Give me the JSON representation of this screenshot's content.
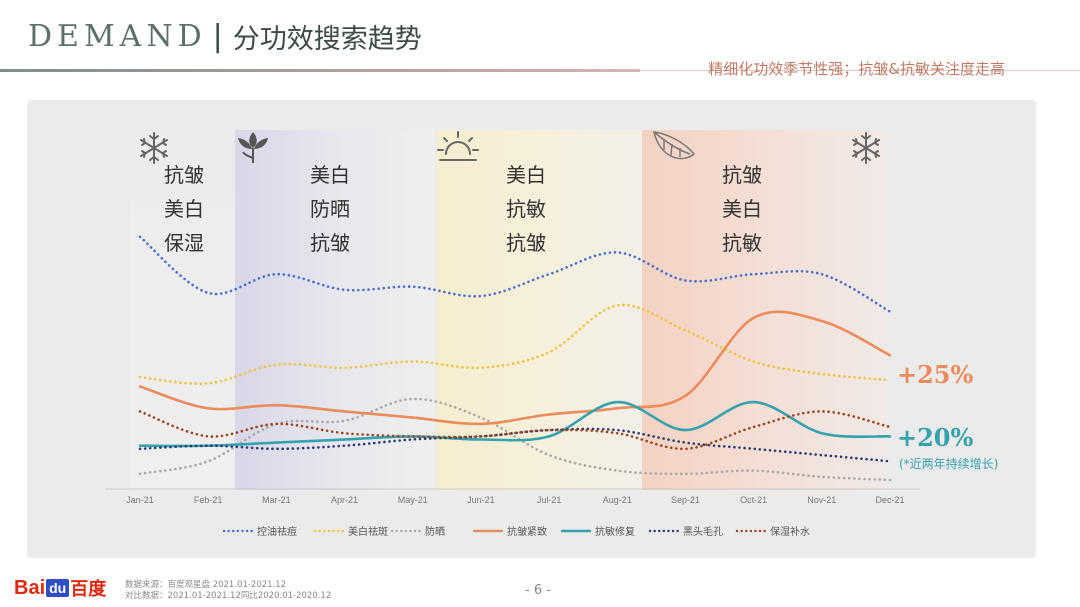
{
  "header": {
    "title_en": "DEMAND",
    "title_sep": "|",
    "title_cn": "分功效搜索趋势",
    "subtitle": "精细化功效季节性强；抗皱&抗敏关注度走高"
  },
  "seasons": [
    {
      "icon": "snowflake-icon",
      "lines": [
        "抗皱",
        "美白",
        "保湿"
      ]
    },
    {
      "icon": "flower-icon",
      "lines": [
        "美白",
        "防晒",
        "抗皱"
      ]
    },
    {
      "icon": "sun-icon",
      "lines": [
        "美白",
        "抗敏",
        "抗皱"
      ]
    },
    {
      "icon": "leaf-icon",
      "lines": [
        "抗皱",
        "美白",
        "抗敏"
      ]
    },
    {
      "icon": "snowflake-icon",
      "lines": []
    }
  ],
  "annotations": {
    "anti_wrinkle_growth": "+25%",
    "anti_sensitive_growth": "+20%",
    "growth_note": "(*近两年持续增长)"
  },
  "chart_data": {
    "type": "line",
    "categories": [
      "Jan-21",
      "Feb-21",
      "Mar-21",
      "Apr-21",
      "May-21",
      "Jun-21",
      "Jul-21",
      "Aug-21",
      "Sep-21",
      "Oct-21",
      "Nov-21",
      "Dec-21"
    ],
    "series": [
      {
        "name": "控油祛痘",
        "style": "dotted",
        "color": "#4a6fd0",
        "values": [
          78,
          60,
          66,
          61,
          62,
          59,
          66,
          73,
          64,
          66,
          66,
          54
        ]
      },
      {
        "name": "美白祛斑",
        "style": "dotted",
        "color": "#f3c23c",
        "values": [
          33,
          31,
          37,
          36,
          38,
          36,
          41,
          56,
          48,
          38,
          34,
          32
        ]
      },
      {
        "name": "防晒",
        "style": "dotted",
        "color": "#a8a8a8",
        "values": [
          2,
          6,
          18,
          19,
          26,
          20,
          8,
          3,
          2,
          3,
          1,
          0
        ]
      },
      {
        "name": "抗皱紧致",
        "style": "solid",
        "color": "#ec8b5c",
        "values": [
          30,
          23,
          24,
          22,
          20,
          18,
          21,
          23,
          27,
          52,
          51,
          40
        ]
      },
      {
        "name": "抗敏修复",
        "style": "solid",
        "color": "#35a2ad",
        "values": [
          11,
          11,
          12,
          13,
          14,
          13,
          14,
          25,
          16,
          25,
          15,
          14
        ]
      },
      {
        "name": "黑头毛孔",
        "style": "dotted",
        "color": "#2c3a73",
        "values": [
          10,
          11,
          10,
          11,
          13,
          14,
          16,
          16,
          12,
          10,
          8,
          6
        ]
      },
      {
        "name": "保湿补水",
        "style": "dotted",
        "color": "#a0431f",
        "values": [
          22,
          14,
          18,
          15,
          14,
          14,
          16,
          15,
          10,
          17,
          22,
          17
        ]
      }
    ],
    "ylim": [
      0,
      85
    ]
  },
  "footer": {
    "logo_bai": "Bai",
    "logo_du": "du",
    "logo_cn": "百度",
    "source_line1": "数据来源：百度观星盘 2021.01-2021.12",
    "source_line2": "对比数据：2021.01-2021.12同比2020.01-2020.12",
    "page": "- 6 -"
  }
}
